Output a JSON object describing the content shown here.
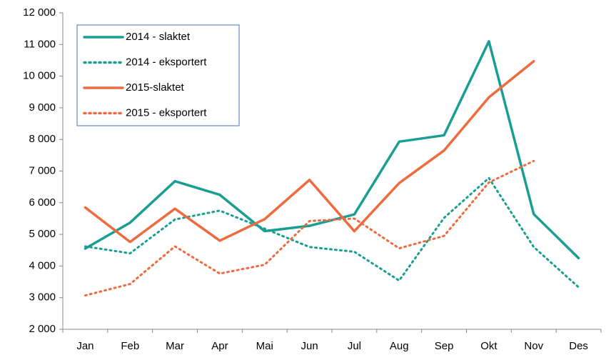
{
  "chart_data": {
    "type": "line",
    "categories": [
      "Jan",
      "Feb",
      "Mar",
      "Apr",
      "Mai",
      "Jun",
      "Jul",
      "Aug",
      "Sep",
      "Okt",
      "Nov",
      "Des"
    ],
    "series": [
      {
        "name": "2014 - slaktet",
        "color": "#1a9e92",
        "style": "solid",
        "values": [
          4550,
          5370,
          6680,
          6250,
          5100,
          5270,
          5630,
          7930,
          8130,
          11100,
          5640,
          4250
        ]
      },
      {
        "name": "2014 - eksportert",
        "color": "#1a9e92",
        "style": "dotted",
        "values": [
          4620,
          4400,
          5470,
          5750,
          5180,
          4600,
          4450,
          3540,
          5520,
          6780,
          4600,
          3330
        ]
      },
      {
        "name": "2015-slaktet",
        "color": "#ee6a3f",
        "style": "solid",
        "values": [
          5850,
          4760,
          5810,
          4800,
          5480,
          6720,
          5100,
          6620,
          7650,
          9330,
          10470,
          null
        ]
      },
      {
        "name": "2015 - eksportert",
        "color": "#ee6a3f",
        "style": "dotted",
        "values": [
          3070,
          3430,
          4620,
          3760,
          4040,
          5420,
          5500,
          4560,
          4950,
          6640,
          7320,
          null
        ]
      }
    ],
    "ylim": [
      2000,
      12000
    ],
    "yticks": [
      {
        "value": 2000,
        "label": "2 000"
      },
      {
        "value": 3000,
        "label": "3 000"
      },
      {
        "value": 4000,
        "label": "4 000"
      },
      {
        "value": 5000,
        "label": "5 000"
      },
      {
        "value": 6000,
        "label": "6 000"
      },
      {
        "value": 7000,
        "label": "7 000"
      },
      {
        "value": 8000,
        "label": "8 000"
      },
      {
        "value": 9000,
        "label": "9 000"
      },
      {
        "value": 10000,
        "label": "10 000"
      },
      {
        "value": 11000,
        "label": "11 000"
      },
      {
        "value": 12000,
        "label": "12 000"
      }
    ],
    "grid": false,
    "legend": "top-left"
  }
}
